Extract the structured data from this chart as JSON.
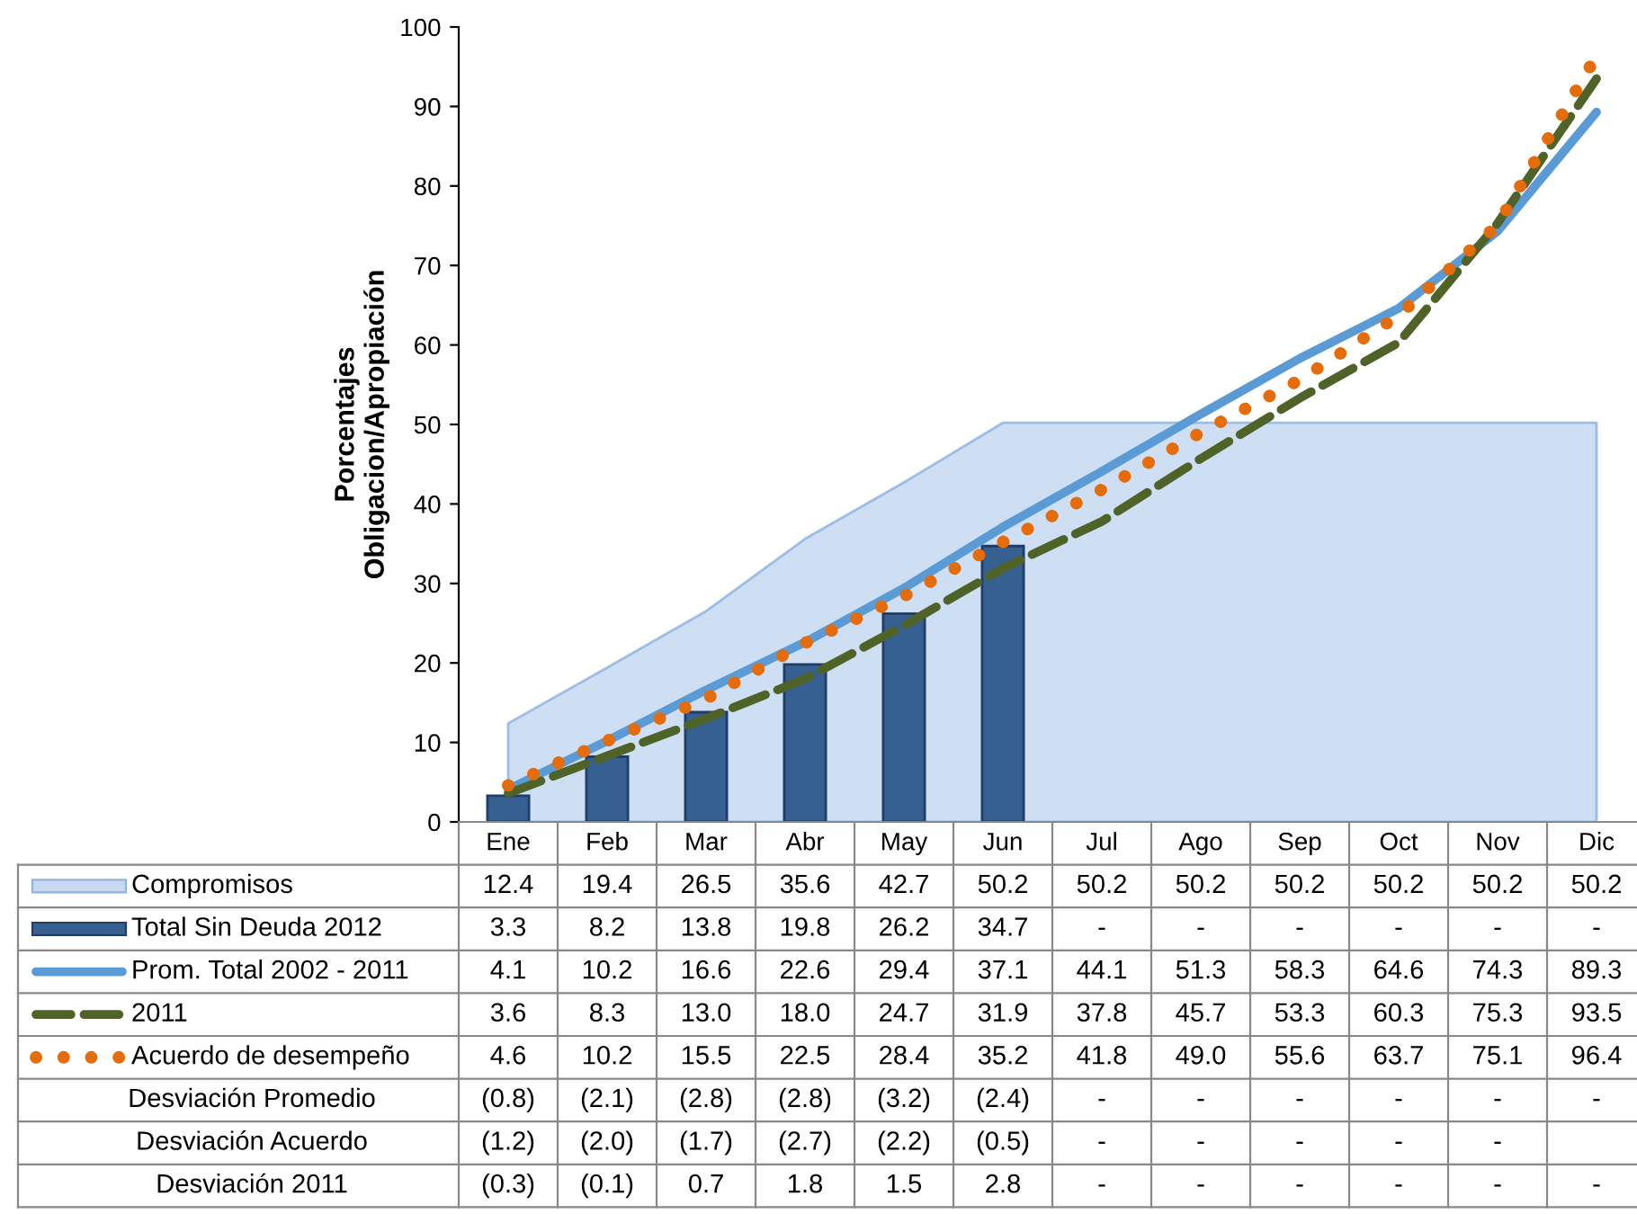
{
  "chart_data": {
    "type": "line",
    "legend": "bottom left",
    "ylabel": "Porcentajes\nObligacion/Apropiación",
    "categories": [
      "Ene",
      "Feb",
      "Mar",
      "Abr",
      "May",
      "Jun",
      "Jul",
      "Ago",
      "Sep",
      "Oct",
      "Nov",
      "Dic"
    ],
    "ylim": [
      0,
      100
    ],
    "yticks": [
      0,
      10,
      20,
      30,
      40,
      50,
      60,
      70,
      80,
      90,
      100
    ],
    "series": [
      {
        "name": "Compromisos",
        "type": "area",
        "color": "#c6d9f1",
        "values": [
          12.4,
          19.4,
          26.5,
          35.6,
          42.7,
          50.2,
          50.2,
          50.2,
          50.2,
          50.2,
          50.2,
          50.2
        ],
        "value_labels": [
          "12.4",
          "19.4",
          "26.5",
          "35.6",
          "42.7",
          "50.2",
          "50.2",
          "50.2",
          "50.2",
          "50.2",
          "50.2",
          "50.2"
        ]
      },
      {
        "name": "Total Sin Deuda 2012",
        "type": "bar",
        "color": "#376092",
        "values": [
          3.3,
          8.2,
          13.8,
          19.8,
          26.2,
          34.7,
          null,
          null,
          null,
          null,
          null,
          null
        ],
        "value_labels": [
          "3.3",
          "8.2",
          "13.8",
          "19.8",
          "26.2",
          "34.7",
          "-",
          "-",
          "-",
          "-",
          "-",
          "-"
        ]
      },
      {
        "name": "Prom. Total 2002 - 2011",
        "type": "line",
        "line_style": "solid",
        "color": "#5b9bd5",
        "values": [
          4.1,
          10.2,
          16.6,
          22.6,
          29.4,
          37.1,
          44.1,
          51.3,
          58.3,
          64.6,
          74.3,
          89.3
        ],
        "value_labels": [
          "4.1",
          "10.2",
          "16.6",
          "22.6",
          "29.4",
          "37.1",
          "44.1",
          "51.3",
          "58.3",
          "64.6",
          "74.3",
          "89.3"
        ]
      },
      {
        "name": "2011",
        "type": "line",
        "line_style": "dashed",
        "color": "#4f6228",
        "values": [
          3.6,
          8.3,
          13.0,
          18.0,
          24.7,
          31.9,
          37.8,
          45.7,
          53.3,
          60.3,
          75.3,
          93.5
        ],
        "value_labels": [
          "3.6",
          "8.3",
          "13.0",
          "18.0",
          "24.7",
          "31.9",
          "37.8",
          "45.7",
          "53.3",
          "60.3",
          "75.3",
          "93.5"
        ]
      },
      {
        "name": "Acuerdo de desempeño",
        "type": "line",
        "line_style": "dotted",
        "color": "#e46c0a",
        "values": [
          4.6,
          10.2,
          15.5,
          22.5,
          28.4,
          35.2,
          41.8,
          49.0,
          55.6,
          63.7,
          75.1,
          96.4
        ],
        "value_labels": [
          "4.6",
          "10.2",
          "15.5",
          "22.5",
          "28.4",
          "35.2",
          "41.8",
          "49.0",
          "55.6",
          "63.7",
          "75.1",
          "96.4"
        ]
      },
      {
        "name": "Desviación Promedio",
        "values": [
          null,
          null,
          null,
          null,
          null,
          null,
          null,
          null,
          null,
          null,
          null,
          null
        ],
        "value_labels": [
          "(0.8)",
          "(2.1)",
          "(2.8)",
          "(2.8)",
          "(3.2)",
          "(2.4)",
          "-",
          "-",
          "-",
          "-",
          "-",
          "-"
        ]
      },
      {
        "name": "Desviación Acuerdo",
        "values": [
          null,
          null,
          null,
          null,
          null,
          null,
          null,
          null,
          null,
          null,
          null,
          null
        ],
        "value_labels": [
          "(1.2)",
          "(2.0)",
          "(1.7)",
          "(2.7)",
          "(2.2)",
          "(0.5)",
          "-",
          "-",
          "-",
          "-",
          "-",
          null
        ]
      },
      {
        "name": "Desviación 2011",
        "values": [
          null,
          null,
          null,
          null,
          null,
          null,
          null,
          null,
          null,
          null,
          null,
          null
        ],
        "value_labels": [
          "(0.3)",
          "(0.1)",
          "0.7",
          "1.8",
          "1.5",
          "2.8",
          "-",
          "-",
          "-",
          "-",
          "-",
          "-"
        ]
      }
    ]
  }
}
